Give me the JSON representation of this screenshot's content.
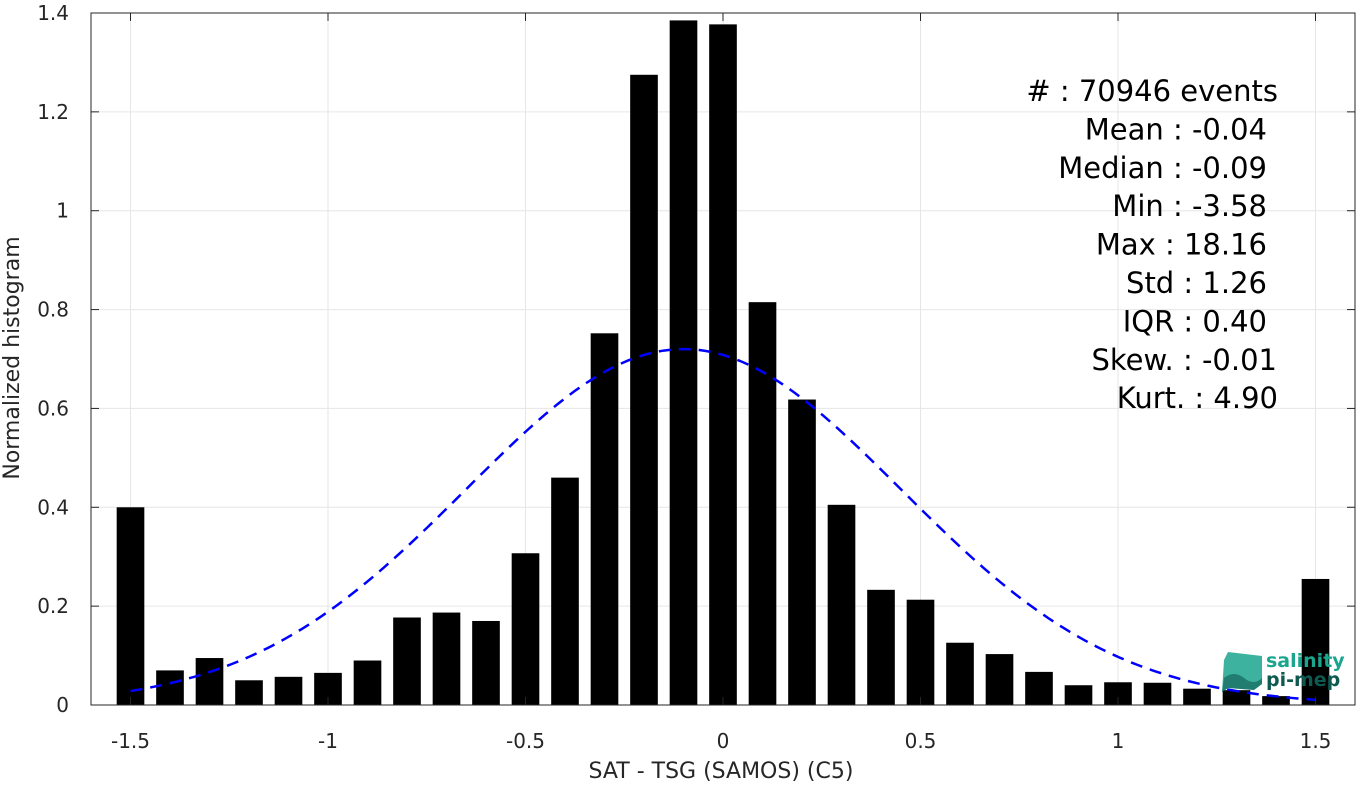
{
  "chart_data": {
    "type": "bar",
    "xlabel": "SAT - TSG (SAMOS) (C5)",
    "ylabel": "Normalized histogram",
    "xlim": [
      -1.6,
      1.6
    ],
    "ylim": [
      0,
      1.4
    ],
    "xticks": [
      -1.5,
      -1,
      -0.5,
      0,
      0.5,
      1,
      1.5
    ],
    "xtick_labels": [
      "-1.5",
      "-1",
      "-0.5",
      "0",
      "0.5",
      "1",
      "1.5"
    ],
    "yticks": [
      0,
      0.2,
      0.4,
      0.6,
      0.8,
      1,
      1.2,
      1.4
    ],
    "ytick_labels": [
      "0",
      "0.2",
      "0.4",
      "0.6",
      "0.8",
      "1",
      "1.2",
      "1.4"
    ],
    "grid": true,
    "bin_width": 0.1,
    "bar_color": "#000000",
    "x": [
      -1.5,
      -1.4,
      -1.3,
      -1.2,
      -1.1,
      -1.0,
      -0.9,
      -0.8,
      -0.7,
      -0.6,
      -0.5,
      -0.4,
      -0.3,
      -0.2,
      -0.1,
      0.0,
      0.1,
      0.2,
      0.3,
      0.4,
      0.5,
      0.6,
      0.7,
      0.8,
      0.9,
      1.0,
      1.1,
      1.2,
      1.3,
      1.4,
      1.5
    ],
    "values": [
      0.4,
      0.07,
      0.095,
      0.05,
      0.057,
      0.065,
      0.09,
      0.177,
      0.187,
      0.17,
      0.307,
      0.46,
      0.752,
      1.275,
      1.385,
      1.377,
      0.815,
      0.618,
      0.405,
      0.233,
      0.213,
      0.126,
      0.103,
      0.067,
      0.04,
      0.046,
      0.045,
      0.033,
      0.03,
      0.018,
      0.255
    ],
    "fit_curve": {
      "type": "gaussian",
      "style": "dashed",
      "color": "#0000ff",
      "mean": -0.1,
      "peak": 0.72,
      "std": 0.55,
      "x_range": [
        -1.5,
        1.5
      ]
    },
    "stats": [
      "#  : 70946 events",
      "Mean : -0.04",
      "Median : -0.09",
      "Min : -3.58",
      "Max : 18.16",
      "Std : 1.26",
      "IQR : 0.40",
      "Skew. : -0.01",
      "Kurt. : 4.90"
    ]
  },
  "logo": {
    "line1": "salinity",
    "line2": "pi-mep",
    "color_primary": "#1aa58e",
    "color_dark": "#0e5a50"
  },
  "colors": {
    "axis": "#262626",
    "grid": "#e6e6e6"
  }
}
